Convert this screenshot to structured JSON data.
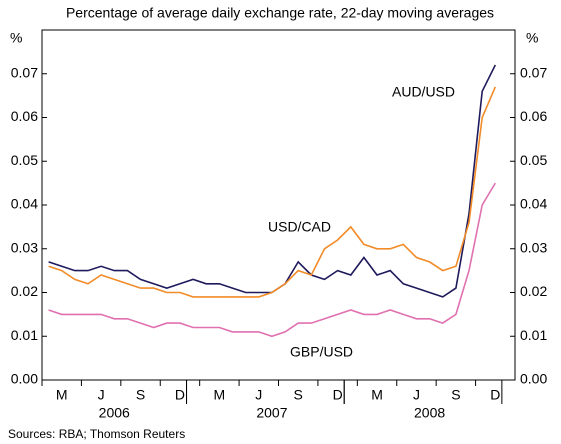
{
  "chart_data": {
    "type": "line",
    "subtitle": "Percentage of average daily exchange rate, 22-day moving averages",
    "y_unit": "%",
    "y2_unit": "%",
    "source": "Sources: RBA; Thomson Reuters",
    "x": [
      "2006-02",
      "2006-03",
      "2006-04",
      "2006-05",
      "2006-06",
      "2006-07",
      "2006-08",
      "2006-09",
      "2006-10",
      "2006-11",
      "2006-12",
      "2007-01",
      "2007-02",
      "2007-03",
      "2007-04",
      "2007-05",
      "2007-06",
      "2007-07",
      "2007-08",
      "2007-09",
      "2007-10",
      "2007-11",
      "2007-12",
      "2008-01",
      "2008-02",
      "2008-03",
      "2008-04",
      "2008-05",
      "2008-06",
      "2008-07",
      "2008-08",
      "2008-09",
      "2008-10",
      "2008-11",
      "2008-12"
    ],
    "xlim": [
      "2006-02",
      "2009-01"
    ],
    "xticks": [
      {
        "value": "2006-03",
        "label": "M"
      },
      {
        "value": "2006-06",
        "label": "J"
      },
      {
        "value": "2006-09",
        "label": "S"
      },
      {
        "value": "2006-12",
        "label": "D"
      },
      {
        "value": "2007-03",
        "label": "M"
      },
      {
        "value": "2007-06",
        "label": "J"
      },
      {
        "value": "2007-09",
        "label": "S"
      },
      {
        "value": "2007-12",
        "label": "D"
      },
      {
        "value": "2008-03",
        "label": "M"
      },
      {
        "value": "2008-06",
        "label": "J"
      },
      {
        "value": "2008-09",
        "label": "S"
      },
      {
        "value": "2008-12",
        "label": "D"
      }
    ],
    "years": [
      "2006",
      "2007",
      "2008"
    ],
    "ylim": [
      0,
      0.08
    ],
    "yticks": [
      {
        "value": 0,
        "label": "0.00"
      },
      {
        "value": 0.01,
        "label": "0.01"
      },
      {
        "value": 0.02,
        "label": "0.02"
      },
      {
        "value": 0.03,
        "label": "0.03"
      },
      {
        "value": 0.04,
        "label": "0.04"
      },
      {
        "value": 0.05,
        "label": "0.05"
      },
      {
        "value": 0.06,
        "label": "0.06"
      },
      {
        "value": 0.07,
        "label": "0.07"
      }
    ],
    "y2lim": [
      0,
      0.08
    ],
    "y2ticks": [
      {
        "value": 0,
        "label": "0.00"
      },
      {
        "value": 0.01,
        "label": "0.01"
      },
      {
        "value": 0.02,
        "label": "0.02"
      },
      {
        "value": 0.03,
        "label": "0.03"
      },
      {
        "value": 0.04,
        "label": "0.04"
      },
      {
        "value": 0.05,
        "label": "0.05"
      },
      {
        "value": 0.06,
        "label": "0.06"
      },
      {
        "value": 0.07,
        "label": "0.07"
      }
    ],
    "grid": false,
    "series": [
      {
        "name": "AUD/USD",
        "color": "#1f1a5c",
        "values": [
          0.027,
          0.026,
          0.025,
          0.025,
          0.026,
          0.025,
          0.025,
          0.023,
          0.022,
          0.021,
          0.022,
          0.023,
          0.022,
          0.022,
          0.021,
          0.02,
          0.02,
          0.02,
          0.022,
          0.027,
          0.024,
          0.023,
          0.025,
          0.024,
          0.028,
          0.024,
          0.025,
          0.022,
          0.021,
          0.02,
          0.019,
          0.021,
          0.038,
          0.066,
          0.072
        ]
      },
      {
        "name": "USD/CAD",
        "color": "#f28c28",
        "values": [
          0.026,
          0.025,
          0.023,
          0.022,
          0.024,
          0.023,
          0.022,
          0.021,
          0.021,
          0.02,
          0.02,
          0.019,
          0.019,
          0.019,
          0.019,
          0.019,
          0.019,
          0.02,
          0.022,
          0.025,
          0.024,
          0.03,
          0.032,
          0.035,
          0.031,
          0.03,
          0.03,
          0.031,
          0.028,
          0.027,
          0.025,
          0.026,
          0.036,
          0.06,
          0.067
        ]
      },
      {
        "name": "GBP/USD",
        "color": "#e070b0",
        "values": [
          0.016,
          0.015,
          0.015,
          0.015,
          0.015,
          0.014,
          0.014,
          0.013,
          0.012,
          0.013,
          0.013,
          0.012,
          0.012,
          0.012,
          0.011,
          0.011,
          0.011,
          0.01,
          0.011,
          0.013,
          0.013,
          0.014,
          0.015,
          0.016,
          0.015,
          0.015,
          0.016,
          0.015,
          0.014,
          0.014,
          0.013,
          0.015,
          0.025,
          0.04,
          0.045
        ]
      }
    ]
  }
}
